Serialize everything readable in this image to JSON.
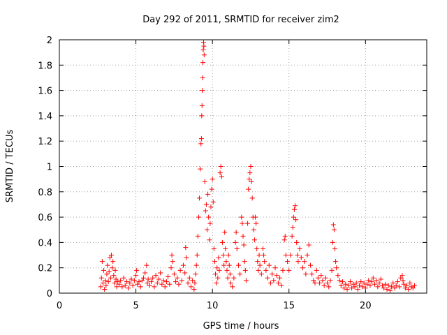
{
  "chart_data": {
    "type": "scatter",
    "title": "Day 292 of 2011, SRMTID for receiver zim2",
    "xlabel": "GPS time / hours",
    "ylabel": "SRMTID / TECUs",
    "xlim": [
      0,
      24.0
    ],
    "ylim": [
      0,
      2
    ],
    "xticks": [
      0,
      5,
      10,
      15,
      20
    ],
    "xtick_labels": [
      "0",
      "5",
      "10",
      "15",
      "20"
    ],
    "yticks": [
      0,
      0.2,
      0.4,
      0.6,
      0.8,
      1,
      1.2,
      1.4,
      1.6,
      1.8,
      2
    ],
    "ytick_labels": [
      "0",
      "0.2",
      "0.4",
      "0.6",
      "0.8",
      "1",
      "1.2",
      "1.4",
      "1.6",
      "1.8",
      "2"
    ],
    "grid": true,
    "marker": "+",
    "color": "#ff0000",
    "series": [
      {
        "name": "SRMTID",
        "points": [
          [
            2.7,
            0.05
          ],
          [
            2.75,
            0.12
          ],
          [
            2.8,
            0.25
          ],
          [
            2.85,
            0.08
          ],
          [
            2.9,
            0.18
          ],
          [
            2.95,
            0.03
          ],
          [
            3.0,
            0.1
          ],
          [
            3.05,
            0.06
          ],
          [
            3.1,
            0.15
          ],
          [
            3.15,
            0.22
          ],
          [
            3.2,
            0.09
          ],
          [
            3.25,
            0.17
          ],
          [
            3.3,
            0.28
          ],
          [
            3.35,
            0.12
          ],
          [
            3.4,
            0.3
          ],
          [
            3.45,
            0.2
          ],
          [
            3.5,
            0.25
          ],
          [
            3.55,
            0.14
          ],
          [
            3.6,
            0.08
          ],
          [
            3.65,
            0.18
          ],
          [
            3.7,
            0.11
          ],
          [
            3.75,
            0.05
          ],
          [
            3.8,
            0.09
          ],
          [
            3.9,
            0.07
          ],
          [
            4.0,
            0.1
          ],
          [
            4.1,
            0.05
          ],
          [
            4.2,
            0.12
          ],
          [
            4.3,
            0.06
          ],
          [
            4.4,
            0.09
          ],
          [
            4.5,
            0.04
          ],
          [
            4.6,
            0.08
          ],
          [
            4.7,
            0.11
          ],
          [
            4.8,
            0.06
          ],
          [
            4.9,
            0.1
          ],
          [
            5.0,
            0.14
          ],
          [
            5.05,
            0.18
          ],
          [
            5.1,
            0.07
          ],
          [
            5.2,
            0.09
          ],
          [
            5.3,
            0.05
          ],
          [
            5.4,
            0.1
          ],
          [
            5.5,
            0.12
          ],
          [
            5.6,
            0.16
          ],
          [
            5.7,
            0.22
          ],
          [
            5.75,
            0.08
          ],
          [
            5.8,
            0.11
          ],
          [
            5.9,
            0.06
          ],
          [
            6.0,
            0.09
          ],
          [
            6.1,
            0.12
          ],
          [
            6.2,
            0.05
          ],
          [
            6.3,
            0.14
          ],
          [
            6.4,
            0.08
          ],
          [
            6.5,
            0.11
          ],
          [
            6.6,
            0.16
          ],
          [
            6.7,
            0.07
          ],
          [
            6.8,
            0.1
          ],
          [
            6.9,
            0.05
          ],
          [
            7.0,
            0.09
          ],
          [
            7.1,
            0.13
          ],
          [
            7.2,
            0.07
          ],
          [
            7.3,
            0.2
          ],
          [
            7.35,
            0.3
          ],
          [
            7.4,
            0.25
          ],
          [
            7.5,
            0.15
          ],
          [
            7.6,
            0.09
          ],
          [
            7.7,
            0.12
          ],
          [
            7.8,
            0.07
          ],
          [
            7.9,
            0.18
          ],
          [
            8.0,
            0.1
          ],
          [
            8.1,
            0.22
          ],
          [
            8.2,
            0.16
          ],
          [
            8.25,
            0.36
          ],
          [
            8.3,
            0.28
          ],
          [
            8.4,
            0.08
          ],
          [
            8.5,
            0.12
          ],
          [
            8.6,
            0.05
          ],
          [
            8.7,
            0.1
          ],
          [
            8.8,
            0.03
          ],
          [
            8.85,
            0.08
          ],
          [
            8.9,
            0.15
          ],
          [
            8.95,
            0.22
          ],
          [
            9.0,
            0.3
          ],
          [
            9.05,
            0.45
          ],
          [
            9.1,
            0.6
          ],
          [
            9.15,
            0.75
          ],
          [
            9.2,
            0.98
          ],
          [
            9.25,
            1.18
          ],
          [
            9.28,
            1.22
          ],
          [
            9.3,
            1.4
          ],
          [
            9.32,
            1.48
          ],
          [
            9.34,
            1.6
          ],
          [
            9.36,
            1.7
          ],
          [
            9.38,
            1.82
          ],
          [
            9.4,
            1.92
          ],
          [
            9.42,
            1.98
          ],
          [
            9.44,
            1.95
          ],
          [
            9.46,
            1.88
          ],
          [
            9.5,
            0.88
          ],
          [
            9.55,
            0.65
          ],
          [
            9.6,
            0.7
          ],
          [
            9.65,
            0.5
          ],
          [
            9.7,
            0.78
          ],
          [
            9.75,
            0.6
          ],
          [
            9.8,
            0.42
          ],
          [
            9.85,
            0.55
          ],
          [
            9.9,
            0.68
          ],
          [
            9.95,
            0.82
          ],
          [
            10.0,
            0.9
          ],
          [
            10.05,
            0.72
          ],
          [
            10.1,
            0.35
          ],
          [
            10.15,
            0.25
          ],
          [
            10.2,
            0.15
          ],
          [
            10.25,
            0.08
          ],
          [
            10.3,
            0.2
          ],
          [
            10.35,
            0.12
          ],
          [
            10.4,
            0.28
          ],
          [
            10.45,
            0.18
          ],
          [
            10.5,
            0.95
          ],
          [
            10.55,
            1.0
          ],
          [
            10.6,
            0.92
          ],
          [
            10.65,
            0.4
          ],
          [
            10.7,
            0.3
          ],
          [
            10.75,
            0.22
          ],
          [
            10.8,
            0.48
          ],
          [
            10.85,
            0.35
          ],
          [
            10.9,
            0.25
          ],
          [
            10.95,
            0.18
          ],
          [
            11.0,
            0.12
          ],
          [
            11.05,
            0.3
          ],
          [
            11.1,
            0.22
          ],
          [
            11.15,
            0.15
          ],
          [
            11.2,
            0.08
          ],
          [
            11.3,
            0.05
          ],
          [
            11.4,
            0.12
          ],
          [
            11.5,
            0.4
          ],
          [
            11.55,
            0.48
          ],
          [
            11.6,
            0.35
          ],
          [
            11.7,
            0.22
          ],
          [
            11.8,
            0.15
          ],
          [
            11.9,
            0.6
          ],
          [
            11.95,
            0.55
          ],
          [
            12.0,
            0.45
          ],
          [
            12.05,
            0.38
          ],
          [
            12.1,
            0.25
          ],
          [
            12.15,
            0.18
          ],
          [
            12.2,
            0.1
          ],
          [
            12.3,
            0.55
          ],
          [
            12.35,
            0.82
          ],
          [
            12.4,
            0.9
          ],
          [
            12.45,
            0.95
          ],
          [
            12.5,
            1.0
          ],
          [
            12.55,
            0.88
          ],
          [
            12.6,
            0.75
          ],
          [
            12.65,
            0.6
          ],
          [
            12.7,
            0.5
          ],
          [
            12.75,
            0.42
          ],
          [
            12.8,
            0.6
          ],
          [
            12.85,
            0.55
          ],
          [
            12.9,
            0.35
          ],
          [
            12.95,
            0.25
          ],
          [
            13.0,
            0.18
          ],
          [
            13.05,
            0.3
          ],
          [
            13.1,
            0.22
          ],
          [
            13.2,
            0.15
          ],
          [
            13.3,
            0.35
          ],
          [
            13.35,
            0.3
          ],
          [
            13.4,
            0.25
          ],
          [
            13.5,
            0.18
          ],
          [
            13.6,
            0.12
          ],
          [
            13.7,
            0.22
          ],
          [
            13.8,
            0.08
          ],
          [
            13.9,
            0.15
          ],
          [
            14.0,
            0.1
          ],
          [
            14.1,
            0.2
          ],
          [
            14.2,
            0.14
          ],
          [
            14.3,
            0.08
          ],
          [
            14.4,
            0.12
          ],
          [
            14.5,
            0.06
          ],
          [
            14.6,
            0.18
          ],
          [
            14.7,
            0.42
          ],
          [
            14.75,
            0.45
          ],
          [
            14.8,
            0.3
          ],
          [
            14.9,
            0.25
          ],
          [
            15.0,
            0.18
          ],
          [
            15.1,
            0.3
          ],
          [
            15.2,
            0.45
          ],
          [
            15.25,
            0.52
          ],
          [
            15.3,
            0.6
          ],
          [
            15.35,
            0.66
          ],
          [
            15.4,
            0.69
          ],
          [
            15.45,
            0.58
          ],
          [
            15.5,
            0.4
          ],
          [
            15.55,
            0.3
          ],
          [
            15.6,
            0.25
          ],
          [
            15.7,
            0.35
          ],
          [
            15.8,
            0.28
          ],
          [
            15.9,
            0.2
          ],
          [
            16.0,
            0.25
          ],
          [
            16.1,
            0.15
          ],
          [
            16.2,
            0.3
          ],
          [
            16.3,
            0.38
          ],
          [
            16.4,
            0.22
          ],
          [
            16.5,
            0.15
          ],
          [
            16.6,
            0.1
          ],
          [
            16.7,
            0.08
          ],
          [
            16.8,
            0.18
          ],
          [
            16.9,
            0.12
          ],
          [
            17.0,
            0.08
          ],
          [
            17.1,
            0.14
          ],
          [
            17.2,
            0.1
          ],
          [
            17.3,
            0.06
          ],
          [
            17.4,
            0.12
          ],
          [
            17.5,
            0.08
          ],
          [
            17.6,
            0.05
          ],
          [
            17.7,
            0.1
          ],
          [
            17.8,
            0.18
          ],
          [
            17.85,
            0.4
          ],
          [
            17.9,
            0.54
          ],
          [
            17.95,
            0.5
          ],
          [
            18.0,
            0.35
          ],
          [
            18.05,
            0.25
          ],
          [
            18.1,
            0.2
          ],
          [
            18.2,
            0.14
          ],
          [
            18.3,
            0.1
          ],
          [
            18.4,
            0.06
          ],
          [
            18.5,
            0.09
          ],
          [
            18.6,
            0.04
          ],
          [
            18.7,
            0.07
          ],
          [
            18.8,
            0.03
          ],
          [
            18.9,
            0.06
          ],
          [
            19.0,
            0.09
          ],
          [
            19.1,
            0.04
          ],
          [
            19.2,
            0.07
          ],
          [
            19.3,
            0.05
          ],
          [
            19.4,
            0.08
          ],
          [
            19.5,
            0.03
          ],
          [
            19.6,
            0.06
          ],
          [
            19.7,
            0.09
          ],
          [
            19.8,
            0.05
          ],
          [
            19.9,
            0.08
          ],
          [
            20.0,
            0.04
          ],
          [
            20.1,
            0.07
          ],
          [
            20.2,
            0.1
          ],
          [
            20.3,
            0.06
          ],
          [
            20.4,
            0.09
          ],
          [
            20.5,
            0.12
          ],
          [
            20.6,
            0.07
          ],
          [
            20.7,
            0.1
          ],
          [
            20.8,
            0.05
          ],
          [
            20.9,
            0.08
          ],
          [
            21.0,
            0.11
          ],
          [
            21.1,
            0.06
          ],
          [
            21.2,
            0.04
          ],
          [
            21.3,
            0.07
          ],
          [
            21.4,
            0.03
          ],
          [
            21.5,
            0.06
          ],
          [
            21.6,
            0.02
          ],
          [
            21.7,
            0.05
          ],
          [
            21.8,
            0.08
          ],
          [
            21.9,
            0.04
          ],
          [
            22.0,
            0.06
          ],
          [
            22.1,
            0.09
          ],
          [
            22.2,
            0.05
          ],
          [
            22.3,
            0.12
          ],
          [
            22.4,
            0.14
          ],
          [
            22.45,
            0.1
          ],
          [
            22.5,
            0.07
          ],
          [
            22.6,
            0.04
          ],
          [
            22.7,
            0.06
          ],
          [
            22.8,
            0.03
          ],
          [
            22.9,
            0.08
          ],
          [
            23.0,
            0.05
          ],
          [
            23.1,
            0.04
          ],
          [
            23.2,
            0.06
          ]
        ]
      }
    ]
  }
}
